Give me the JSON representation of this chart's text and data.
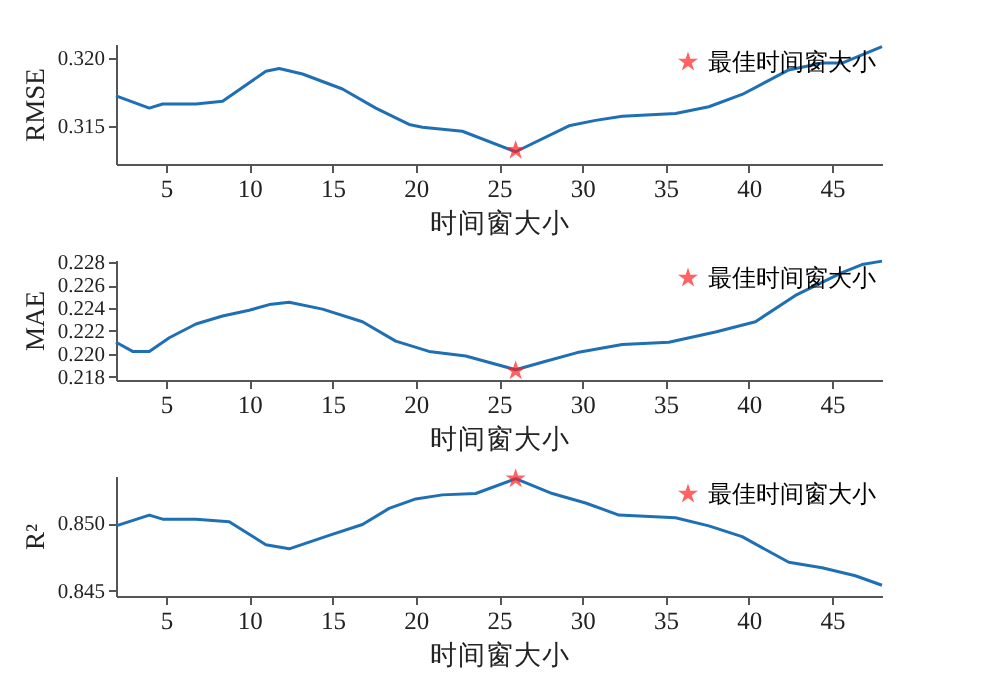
{
  "chart_data": [
    {
      "type": "line",
      "xlabel": "时间窗大小",
      "ylabel": "RMSE",
      "xlim": [
        2,
        48
      ],
      "xticks": [
        5,
        10,
        15,
        20,
        25,
        30,
        35,
        40,
        45
      ],
      "ylim": [
        0.3122,
        0.321
      ],
      "yticks": [
        {
          "value": 0.315,
          "label": "0.315"
        },
        {
          "value": 0.32,
          "label": "0.320"
        }
      ],
      "grid": false,
      "legend": "top right",
      "series": [
        {
          "color": "#1f6fb4",
          "x": [
            2,
            4,
            4.8,
            6.8,
            8.4,
            11,
            11.8,
            13.2,
            15.6,
            17.6,
            19.6,
            20.4,
            22.8,
            26,
            29.2,
            30.8,
            32.4,
            35.6,
            37.6,
            39.6,
            42.4,
            44.4,
            45.6,
            48
          ],
          "values": [
            0.3172,
            0.3163,
            0.3166,
            0.3166,
            0.3168,
            0.319,
            0.3192,
            0.3188,
            0.3177,
            0.3163,
            0.3151,
            0.3149,
            0.3146,
            0.3131,
            0.315,
            0.3154,
            0.3157,
            0.3159,
            0.3164,
            0.3173,
            0.3191,
            0.3196,
            0.3196,
            0.3208
          ]
        },
        {
          "type": "scatter",
          "name": "最佳时间窗大小",
          "color": "#ff2020",
          "marker": "star",
          "x": [
            26
          ],
          "values": [
            0.3132
          ]
        }
      ]
    },
    {
      "type": "line",
      "xlabel": "时间窗大小",
      "ylabel": "MAE",
      "xlim": [
        2,
        48
      ],
      "xticks": [
        5,
        10,
        15,
        20,
        25,
        30,
        35,
        40,
        45
      ],
      "ylim": [
        0.2177,
        0.2282
      ],
      "yticks": [
        {
          "value": 0.218,
          "label": "0.218"
        },
        {
          "value": 0.22,
          "label": "0.220"
        },
        {
          "value": 0.222,
          "label": "0.222"
        },
        {
          "value": 0.224,
          "label": "0.224"
        },
        {
          "value": 0.226,
          "label": "0.226"
        },
        {
          "value": 0.228,
          "label": "0.228"
        }
      ],
      "grid": false,
      "legend": "top right",
      "series": [
        {
          "color": "#1f6fb4",
          "x": [
            2,
            3,
            4,
            5.2,
            6.8,
            8.4,
            10,
            11.2,
            12.4,
            14.4,
            16.8,
            18.8,
            20.8,
            23,
            26,
            27.7,
            29.7,
            32.4,
            35.2,
            38,
            40.4,
            42.8,
            45.6,
            46.8,
            48
          ],
          "values": [
            0.221,
            0.2202,
            0.2202,
            0.2214,
            0.2226,
            0.2233,
            0.2238,
            0.2243,
            0.2245,
            0.2239,
            0.2228,
            0.2211,
            0.2202,
            0.2198,
            0.2186,
            0.2193,
            0.2201,
            0.2208,
            0.221,
            0.2219,
            0.2228,
            0.2251,
            0.2271,
            0.2278,
            0.2281
          ]
        },
        {
          "type": "scatter",
          "name": "最佳时间窗大小",
          "color": "#ff2020",
          "marker": "star",
          "x": [
            26
          ],
          "values": [
            0.2185
          ]
        }
      ]
    },
    {
      "type": "line",
      "xlabel": "时间窗大小",
      "ylabel": "R²",
      "xlim": [
        2,
        48
      ],
      "xticks": [
        5,
        10,
        15,
        20,
        25,
        30,
        35,
        40,
        45
      ],
      "ylim": [
        0.8446,
        0.8535
      ],
      "yticks": [
        {
          "value": 0.845,
          "label": "0.845"
        },
        {
          "value": 0.85,
          "label": "0.850"
        }
      ],
      "grid": false,
      "legend": "top right",
      "series": [
        {
          "color": "#1f6fb4",
          "x": [
            2,
            4,
            4.8,
            6.8,
            8.8,
            11,
            12.4,
            14.8,
            16.8,
            18.4,
            20,
            21.6,
            23.6,
            26,
            28.2,
            30.2,
            32.2,
            35.6,
            37.6,
            39.6,
            42.4,
            44.4,
            46.4,
            48
          ],
          "values": [
            0.8498,
            0.8506,
            0.8503,
            0.8503,
            0.8501,
            0.8484,
            0.8481,
            0.8491,
            0.8499,
            0.8511,
            0.8518,
            0.8521,
            0.8522,
            0.8533,
            0.8522,
            0.8515,
            0.8506,
            0.8504,
            0.8498,
            0.849,
            0.8471,
            0.8467,
            0.8461,
            0.8454
          ]
        },
        {
          "type": "scatter",
          "name": "最佳时间窗大小",
          "color": "#ff2020",
          "marker": "star",
          "x": [
            26
          ],
          "values": [
            0.8533
          ]
        }
      ]
    }
  ]
}
